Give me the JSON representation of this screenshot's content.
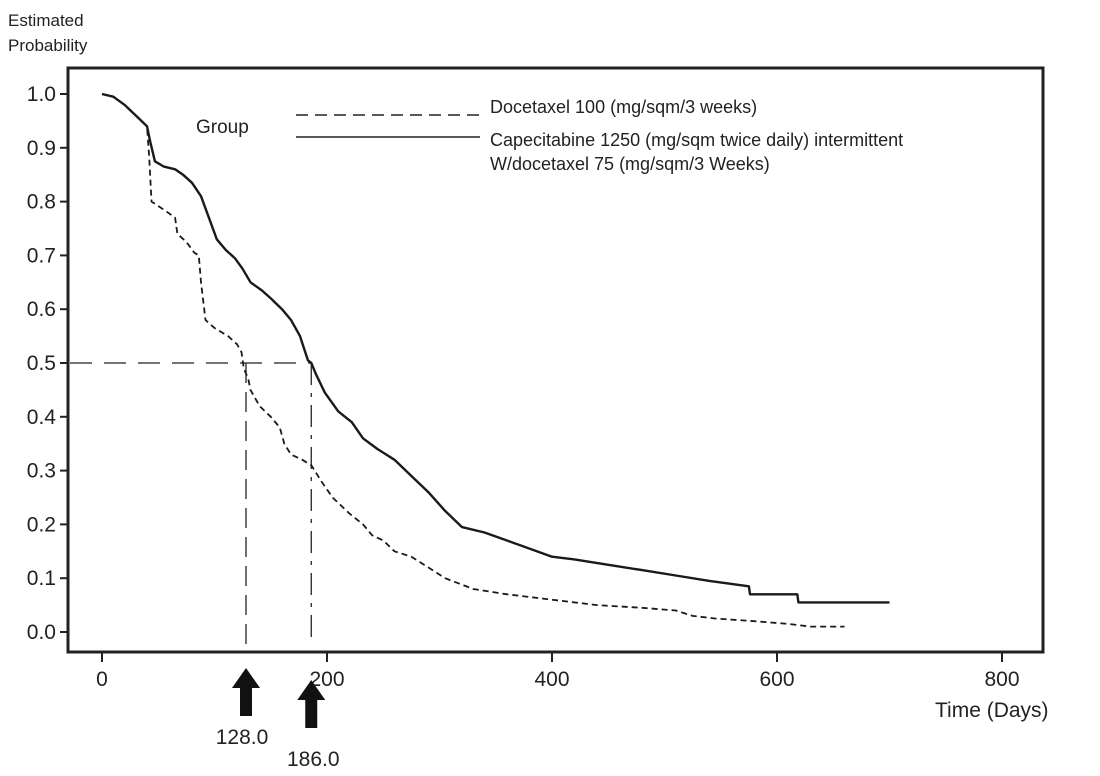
{
  "chart_data": {
    "type": "line",
    "subtype": "kaplan-meier",
    "ylabel": [
      "Estimated",
      "Probability"
    ],
    "xlabel": "Time (Days)",
    "xlim": [
      0,
      800
    ],
    "ylim": [
      0,
      1.0
    ],
    "x_ticks": [
      "0",
      "200",
      "400",
      "600",
      "800"
    ],
    "x_tick_values": [
      0,
      200,
      400,
      600,
      800
    ],
    "y_ticks": [
      "0.0",
      "0.1",
      "0.2",
      "0.3",
      "0.4",
      "0.5",
      "0.6",
      "0.7",
      "0.8",
      "0.9",
      "1.0"
    ],
    "y_tick_values": [
      0,
      0.1,
      0.2,
      0.3,
      0.4,
      0.5,
      0.6,
      0.7,
      0.8,
      0.9,
      1.0
    ],
    "legend": {
      "title": "Group",
      "position": "top-center",
      "entries": [
        {
          "label": "Docetaxel 100 (mg/sqm/3 weeks)",
          "style": "dashed"
        },
        {
          "label": "Capecitabine 1250 (mg/sqm twice daily) intermittent",
          "label2": "W/docetaxel 75 (mg/sqm/3 Weeks)",
          "style": "solid"
        }
      ]
    },
    "series": [
      {
        "name": "Docetaxel 100 (mg/sqm/3 weeks)",
        "style": "dashed",
        "points": [
          [
            0,
            1.0
          ],
          [
            10,
            0.995
          ],
          [
            20,
            0.98
          ],
          [
            30,
            0.96
          ],
          [
            40,
            0.94
          ],
          [
            42,
            0.88
          ],
          [
            44,
            0.8
          ],
          [
            55,
            0.785
          ],
          [
            65,
            0.77
          ],
          [
            67,
            0.74
          ],
          [
            75,
            0.725
          ],
          [
            82,
            0.705
          ],
          [
            86,
            0.7
          ],
          [
            88,
            0.65
          ],
          [
            92,
            0.58
          ],
          [
            100,
            0.565
          ],
          [
            112,
            0.55
          ],
          [
            120,
            0.535
          ],
          [
            124,
            0.52
          ],
          [
            126,
            0.49
          ],
          [
            130,
            0.47
          ],
          [
            132,
            0.45
          ],
          [
            140,
            0.42
          ],
          [
            150,
            0.4
          ],
          [
            158,
            0.38
          ],
          [
            162,
            0.35
          ],
          [
            168,
            0.33
          ],
          [
            178,
            0.32
          ],
          [
            186,
            0.31
          ],
          [
            195,
            0.28
          ],
          [
            205,
            0.25
          ],
          [
            220,
            0.22
          ],
          [
            232,
            0.2
          ],
          [
            240,
            0.18
          ],
          [
            250,
            0.17
          ],
          [
            260,
            0.15
          ],
          [
            275,
            0.14
          ],
          [
            290,
            0.12
          ],
          [
            305,
            0.1
          ],
          [
            330,
            0.08
          ],
          [
            360,
            0.07
          ],
          [
            400,
            0.06
          ],
          [
            440,
            0.05
          ],
          [
            480,
            0.045
          ],
          [
            510,
            0.04
          ],
          [
            525,
            0.03
          ],
          [
            545,
            0.025
          ],
          [
            580,
            0.02
          ],
          [
            610,
            0.015
          ],
          [
            630,
            0.01
          ],
          [
            660,
            0.01
          ]
        ]
      },
      {
        "name": "Capecitabine 1250 (mg/sqm twice daily) intermittent W/docetaxel 75 (mg/sqm/3 Weeks)",
        "style": "solid",
        "points": [
          [
            0,
            1.0
          ],
          [
            10,
            0.995
          ],
          [
            20,
            0.98
          ],
          [
            30,
            0.96
          ],
          [
            40,
            0.94
          ],
          [
            43,
            0.91
          ],
          [
            47,
            0.875
          ],
          [
            55,
            0.865
          ],
          [
            65,
            0.86
          ],
          [
            72,
            0.85
          ],
          [
            80,
            0.835
          ],
          [
            88,
            0.81
          ],
          [
            95,
            0.77
          ],
          [
            102,
            0.73
          ],
          [
            110,
            0.71
          ],
          [
            118,
            0.695
          ],
          [
            125,
            0.675
          ],
          [
            132,
            0.65
          ],
          [
            142,
            0.635
          ],
          [
            150,
            0.62
          ],
          [
            160,
            0.6
          ],
          [
            168,
            0.58
          ],
          [
            176,
            0.55
          ],
          [
            183,
            0.505
          ],
          [
            186,
            0.5
          ],
          [
            190,
            0.48
          ],
          [
            198,
            0.445
          ],
          [
            210,
            0.41
          ],
          [
            222,
            0.39
          ],
          [
            232,
            0.36
          ],
          [
            245,
            0.34
          ],
          [
            260,
            0.32
          ],
          [
            275,
            0.29
          ],
          [
            290,
            0.26
          ],
          [
            305,
            0.225
          ],
          [
            320,
            0.195
          ],
          [
            340,
            0.185
          ],
          [
            360,
            0.17
          ],
          [
            380,
            0.155
          ],
          [
            400,
            0.14
          ],
          [
            420,
            0.135
          ],
          [
            450,
            0.125
          ],
          [
            480,
            0.115
          ],
          [
            510,
            0.105
          ],
          [
            540,
            0.095
          ],
          [
            575,
            0.085
          ],
          [
            576,
            0.07
          ],
          [
            618,
            0.07
          ],
          [
            619,
            0.055
          ],
          [
            700,
            0.055
          ]
        ]
      }
    ],
    "medians": [
      {
        "series": "Docetaxel 100 (mg/sqm/3 weeks)",
        "value": 128.0,
        "label": "128.0"
      },
      {
        "series": "Capecitabine",
        "value": 186.0,
        "label": "186.0"
      }
    ],
    "median_probability": 0.5
  }
}
